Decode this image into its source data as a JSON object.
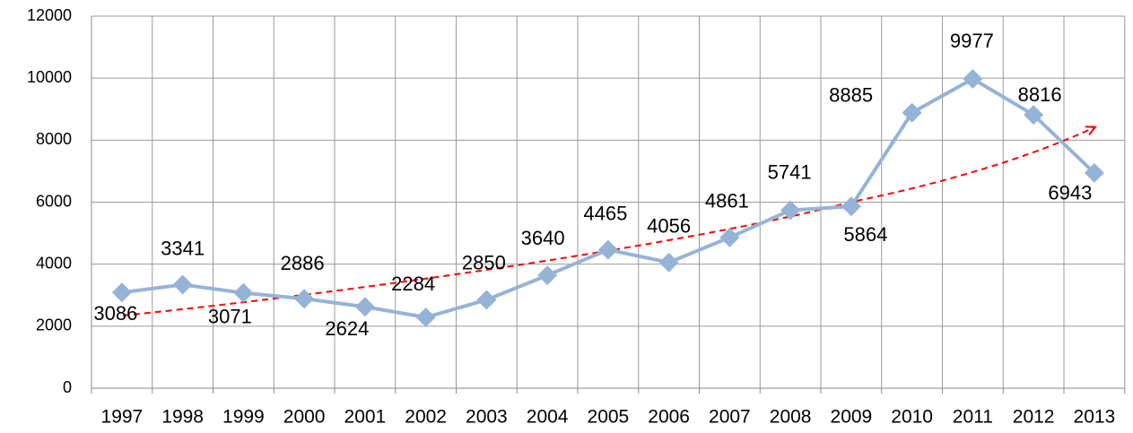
{
  "chart_data": {
    "type": "line",
    "categories": [
      "1997",
      "1998",
      "1999",
      "2000",
      "2001",
      "2002",
      "2003",
      "2004",
      "2005",
      "2006",
      "2007",
      "2008",
      "2009",
      "2010",
      "2011",
      "2012",
      "2013"
    ],
    "series": [
      {
        "color": "#95b3d7",
        "values": [
          3086,
          3341,
          3071,
          2886,
          2624,
          2284,
          2850,
          3640,
          4465,
          4056,
          4861,
          5741,
          5864,
          8885,
          9977,
          8816,
          6943
        ]
      }
    ],
    "ylim": [
      0,
      12000
    ],
    "yticks": [
      0,
      2000,
      4000,
      6000,
      8000,
      10000,
      12000
    ],
    "grid": true,
    "trendline_color": "#ff0000"
  }
}
